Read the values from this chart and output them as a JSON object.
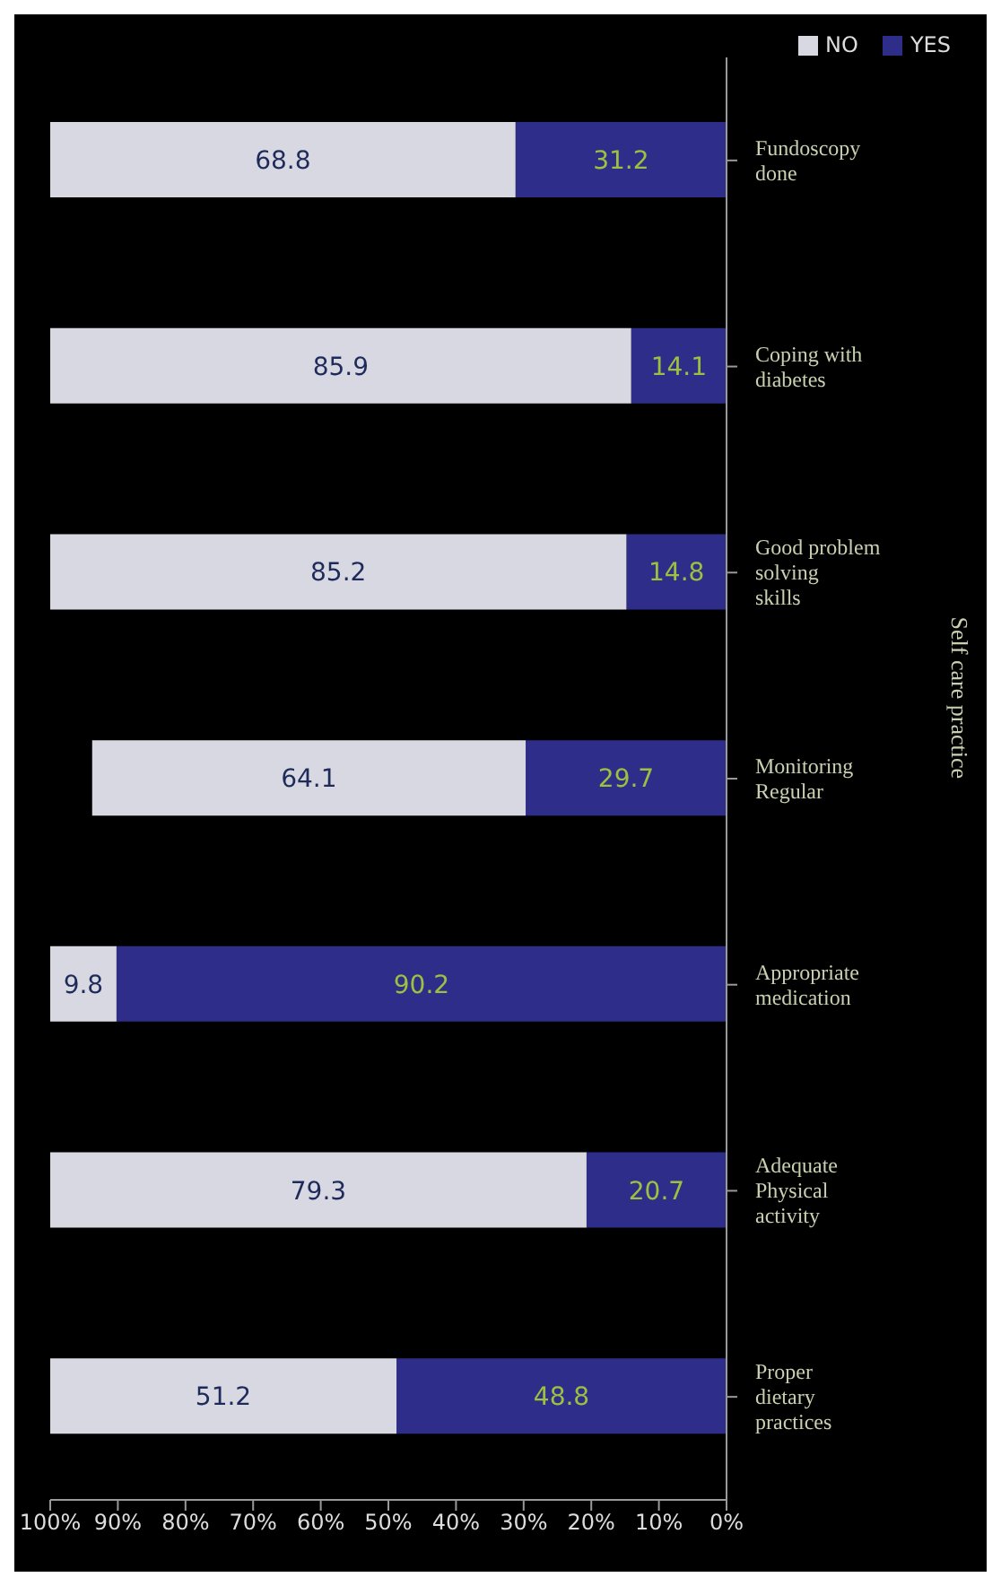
{
  "chart_data": {
    "type": "bar",
    "orientation": "horizontal",
    "stacked": true,
    "ylabel": "Self care practice",
    "categories": [
      "Fundoscopy done",
      "Coping with diabetes",
      "Good problem solving skills",
      "Monitoring Regular",
      "Appropriate medication",
      "Adequate Physical activity",
      "Proper dietary practices"
    ],
    "series": [
      {
        "name": "YES",
        "color": "#2e2e8a",
        "values": [
          31.2,
          14.1,
          14.8,
          29.7,
          90.2,
          20.7,
          48.8
        ]
      },
      {
        "name": "NO",
        "color": "#d8d8e2",
        "values": [
          68.8,
          85.9,
          85.2,
          64.1,
          9.8,
          79.3,
          51.2
        ]
      }
    ],
    "xlim": [
      100,
      0
    ],
    "xticks": [
      {
        "value": 100,
        "label": "100%"
      },
      {
        "value": 90,
        "label": "90%"
      },
      {
        "value": 80,
        "label": "80%"
      },
      {
        "value": 70,
        "label": "70%"
      },
      {
        "value": 60,
        "label": "60%"
      },
      {
        "value": 50,
        "label": "50%"
      },
      {
        "value": 40,
        "label": "40%"
      },
      {
        "value": 30,
        "label": "30%"
      },
      {
        "value": 20,
        "label": "20%"
      },
      {
        "value": 10,
        "label": "10%"
      },
      {
        "value": 0,
        "label": "0%"
      }
    ],
    "grid": false,
    "legend": "top right",
    "data_labels": true
  }
}
